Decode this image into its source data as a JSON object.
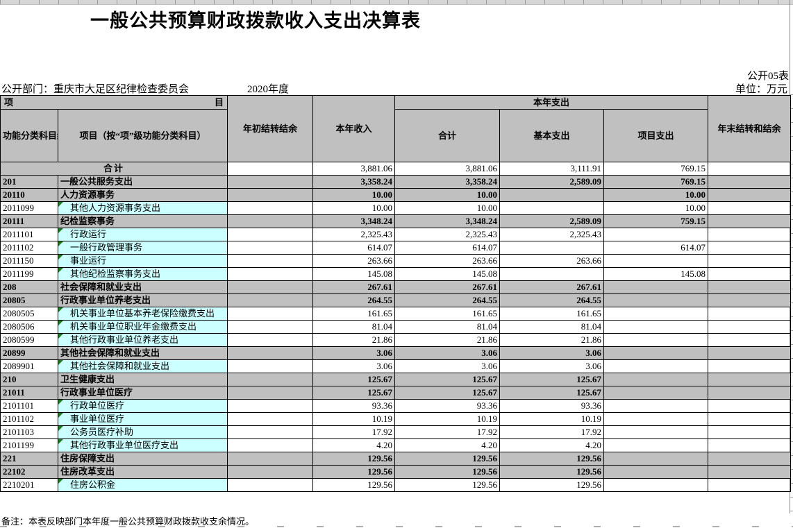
{
  "header": {
    "title": "一般公共预算财政拨款收入支出决算表",
    "sheet_label": "公开05表",
    "department_label": "公开部门：重庆市大足区纪律检查委员会",
    "year_label": "2020年度",
    "unit_label": "单位：万元"
  },
  "table": {
    "columns": {
      "item_left": "项",
      "item_right": "目",
      "code": "功能分类科目编码",
      "name": "项目（按“项”级功能分类科目）",
      "begin_balance": "年初结转结余",
      "income": "本年收入",
      "expend_group": "本年支出",
      "exp_total": "合计",
      "exp_basic": "基本支出",
      "exp_project": "项目支出",
      "end_balance": "年末结转和结余"
    },
    "rows": [
      {
        "type": "total",
        "code": "",
        "name": "合计",
        "begin": "",
        "income": "3,881.06",
        "total": "3,881.06",
        "basic": "3,111.91",
        "project": "769.15",
        "end": ""
      },
      {
        "type": "category",
        "code": "201",
        "name": "一般公共服务支出",
        "begin": "",
        "income": "3,358.24",
        "total": "3,358.24",
        "basic": "2,589.09",
        "project": "769.15",
        "end": ""
      },
      {
        "type": "category",
        "code": "20110",
        "name": "人力资源事务",
        "begin": "",
        "income": "10.00",
        "total": "10.00",
        "basic": "",
        "project": "10.00",
        "end": ""
      },
      {
        "type": "leaf",
        "code": "2011099",
        "name": "其他人力资源事务支出",
        "begin": "",
        "income": "10.00",
        "total": "10.00",
        "basic": "",
        "project": "10.00",
        "end": ""
      },
      {
        "type": "category",
        "code": "20111",
        "name": "纪检监察事务",
        "begin": "",
        "income": "3,348.24",
        "total": "3,348.24",
        "basic": "2,589.09",
        "project": "759.15",
        "end": ""
      },
      {
        "type": "leaf",
        "code": "2011101",
        "name": "行政运行",
        "begin": "",
        "income": "2,325.43",
        "total": "2,325.43",
        "basic": "2,325.43",
        "project": "",
        "end": ""
      },
      {
        "type": "leaf",
        "code": "2011102",
        "name": "一般行政管理事务",
        "begin": "",
        "income": "614.07",
        "total": "614.07",
        "basic": "",
        "project": "614.07",
        "end": ""
      },
      {
        "type": "leaf",
        "code": "2011150",
        "name": "事业运行",
        "begin": "",
        "income": "263.66",
        "total": "263.66",
        "basic": "263.66",
        "project": "",
        "end": ""
      },
      {
        "type": "leaf",
        "code": "2011199",
        "name": "其他纪检监察事务支出",
        "begin": "",
        "income": "145.08",
        "total": "145.08",
        "basic": "",
        "project": "145.08",
        "end": ""
      },
      {
        "type": "category",
        "code": "208",
        "name": "社会保障和就业支出",
        "begin": "",
        "income": "267.61",
        "total": "267.61",
        "basic": "267.61",
        "project": "",
        "end": ""
      },
      {
        "type": "category",
        "code": "20805",
        "name": "行政事业单位养老支出",
        "begin": "",
        "income": "264.55",
        "total": "264.55",
        "basic": "264.55",
        "project": "",
        "end": ""
      },
      {
        "type": "leaf",
        "code": "2080505",
        "name": "机关事业单位基本养老保险缴费支出",
        "begin": "",
        "income": "161.65",
        "total": "161.65",
        "basic": "161.65",
        "project": "",
        "end": ""
      },
      {
        "type": "leaf",
        "code": "2080506",
        "name": "机关事业单位职业年金缴费支出",
        "begin": "",
        "income": "81.04",
        "total": "81.04",
        "basic": "81.04",
        "project": "",
        "end": ""
      },
      {
        "type": "leaf",
        "code": "2080599",
        "name": "其他行政事业单位养老支出",
        "begin": "",
        "income": "21.86",
        "total": "21.86",
        "basic": "21.86",
        "project": "",
        "end": ""
      },
      {
        "type": "category",
        "code": "20899",
        "name": "其他社会保障和就业支出",
        "begin": "",
        "income": "3.06",
        "total": "3.06",
        "basic": "3.06",
        "project": "",
        "end": ""
      },
      {
        "type": "leaf",
        "code": "2089901",
        "name": "其他社会保障和就业支出",
        "begin": "",
        "income": "3.06",
        "total": "3.06",
        "basic": "3.06",
        "project": "",
        "end": ""
      },
      {
        "type": "category",
        "code": "210",
        "name": "卫生健康支出",
        "begin": "",
        "income": "125.67",
        "total": "125.67",
        "basic": "125.67",
        "project": "",
        "end": ""
      },
      {
        "type": "category",
        "code": "21011",
        "name": "行政事业单位医疗",
        "begin": "",
        "income": "125.67",
        "total": "125.67",
        "basic": "125.67",
        "project": "",
        "end": ""
      },
      {
        "type": "leaf",
        "code": "2101101",
        "name": "行政单位医疗",
        "begin": "",
        "income": "93.36",
        "total": "93.36",
        "basic": "93.36",
        "project": "",
        "end": ""
      },
      {
        "type": "leaf",
        "code": "2101102",
        "name": "事业单位医疗",
        "begin": "",
        "income": "10.19",
        "total": "10.19",
        "basic": "10.19",
        "project": "",
        "end": ""
      },
      {
        "type": "leaf",
        "code": "2101103",
        "name": "公务员医疗补助",
        "begin": "",
        "income": "17.92",
        "total": "17.92",
        "basic": "17.92",
        "project": "",
        "end": ""
      },
      {
        "type": "leaf",
        "code": "2101199",
        "name": "其他行政事业单位医疗支出",
        "begin": "",
        "income": "4.20",
        "total": "4.20",
        "basic": "4.20",
        "project": "",
        "end": ""
      },
      {
        "type": "category",
        "code": "221",
        "name": "住房保障支出",
        "begin": "",
        "income": "129.56",
        "total": "129.56",
        "basic": "129.56",
        "project": "",
        "end": ""
      },
      {
        "type": "category",
        "code": "22102",
        "name": "住房改革支出",
        "begin": "",
        "income": "129.56",
        "total": "129.56",
        "basic": "129.56",
        "project": "",
        "end": ""
      },
      {
        "type": "leaf",
        "code": "2210201",
        "name": "住房公积金",
        "begin": "",
        "income": "129.56",
        "total": "129.56",
        "basic": "129.56",
        "project": "",
        "end": ""
      }
    ]
  },
  "footer": {
    "note": "备注：本表反映部门本年度一般公共预算财政拨款收支余情况。"
  },
  "colors": {
    "header_bg": "#c0c0c0",
    "category_row_bg": "#c0c0c0",
    "leaf_cell_bg": "#ccffff",
    "flag_triangle_green": "#1f7a1f"
  }
}
